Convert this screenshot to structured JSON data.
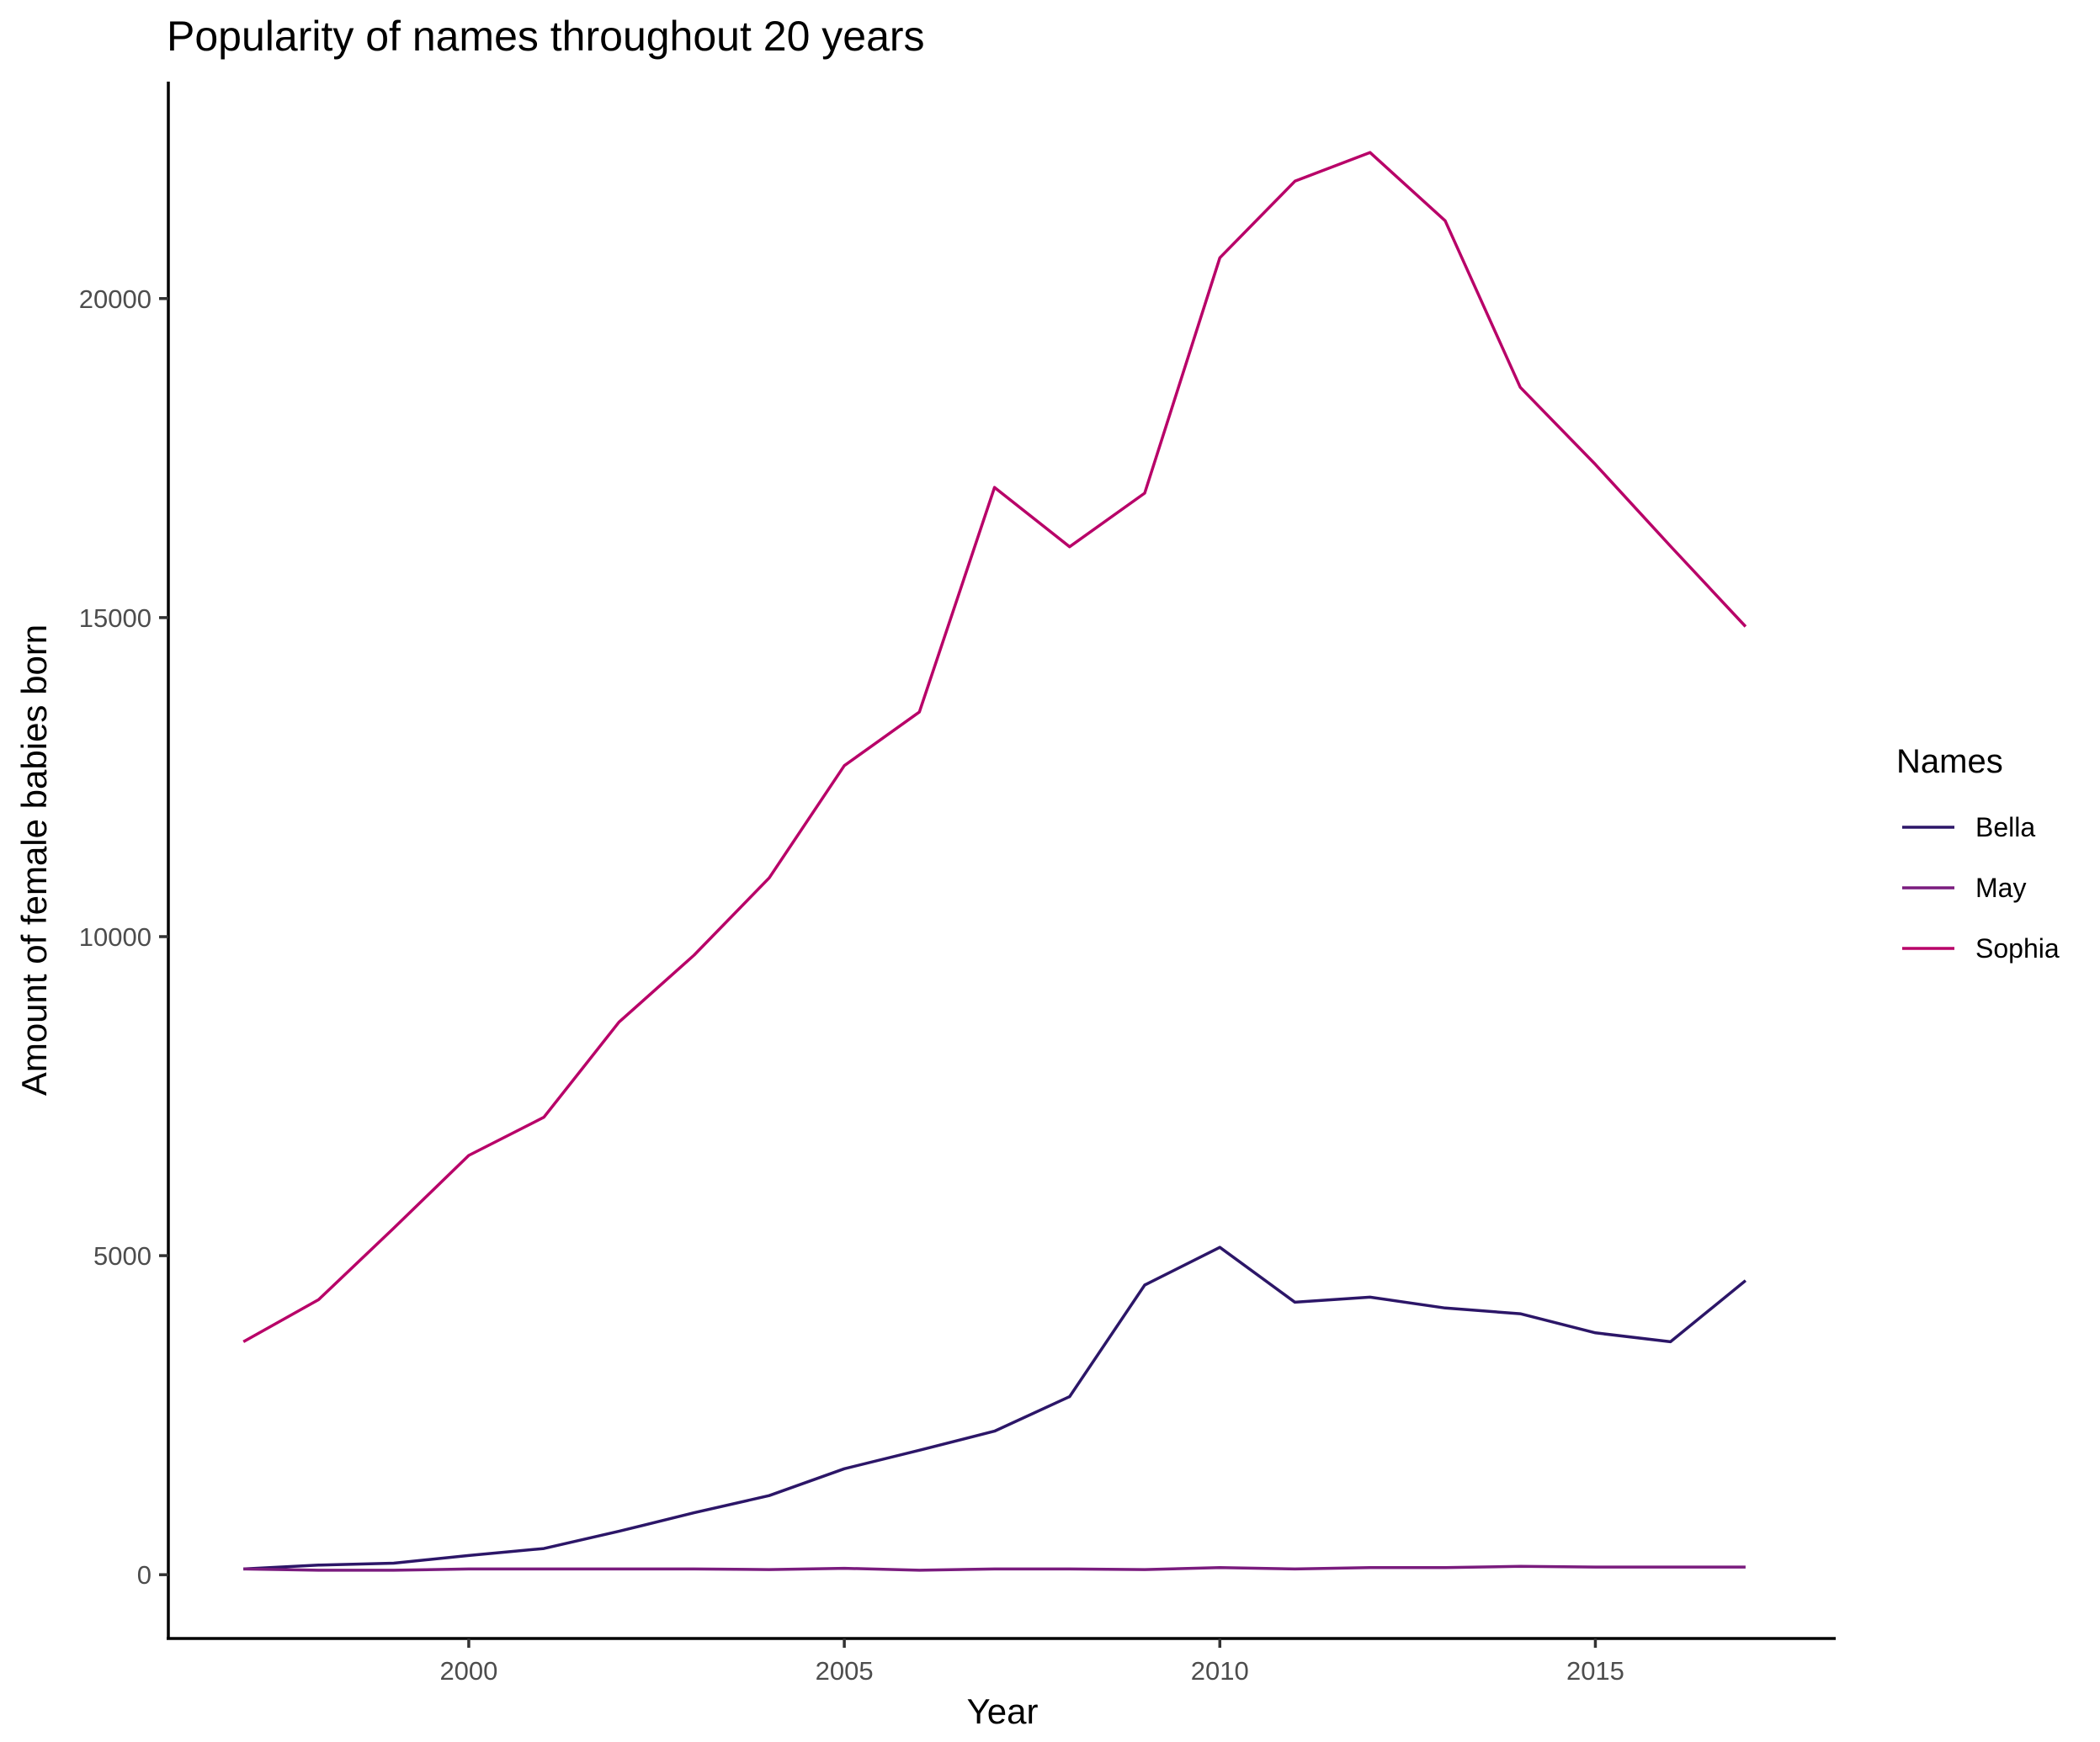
{
  "chart_data": {
    "type": "line",
    "title": "Popularity of names throughout 20 years",
    "xlabel": "Year",
    "ylabel": "Amount of female babies born",
    "xlim": [
      1996,
      2018.2
    ],
    "ylim": [
      -1000,
      23400
    ],
    "xticks": [
      2000,
      2005,
      2010,
      2015
    ],
    "yticks": [
      0,
      5000,
      10000,
      15000,
      20000
    ],
    "x": [
      1997,
      1998,
      1999,
      2000,
      2001,
      2002,
      2003,
      2004,
      2005,
      2006,
      2007,
      2008,
      2009,
      2010,
      2011,
      2012,
      2013,
      2014,
      2015,
      2016,
      2017
    ],
    "legend": {
      "title": "Names",
      "position": "right"
    },
    "series": [
      {
        "name": "Bella",
        "color": "#2c1668",
        "values": [
          90,
          150,
          180,
          300,
          410,
          680,
          970,
          1240,
          1660,
          1950,
          2250,
          2790,
          4540,
          5130,
          4270,
          4350,
          4180,
          4090,
          3790,
          3650,
          4610
        ]
      },
      {
        "name": "May",
        "color": "#7a1c7e",
        "values": [
          90,
          70,
          70,
          90,
          90,
          90,
          90,
          80,
          100,
          70,
          90,
          90,
          80,
          110,
          90,
          110,
          110,
          130,
          120,
          120,
          120
        ]
      },
      {
        "name": "Sophia",
        "color": "#b80068",
        "values": [
          3650,
          4310,
          5430,
          6570,
          7170,
          8660,
          9710,
          10920,
          12680,
          13520,
          17040,
          16110,
          16950,
          20640,
          21840,
          22290,
          21220,
          18610,
          17400,
          16120,
          14860
        ]
      }
    ]
  }
}
